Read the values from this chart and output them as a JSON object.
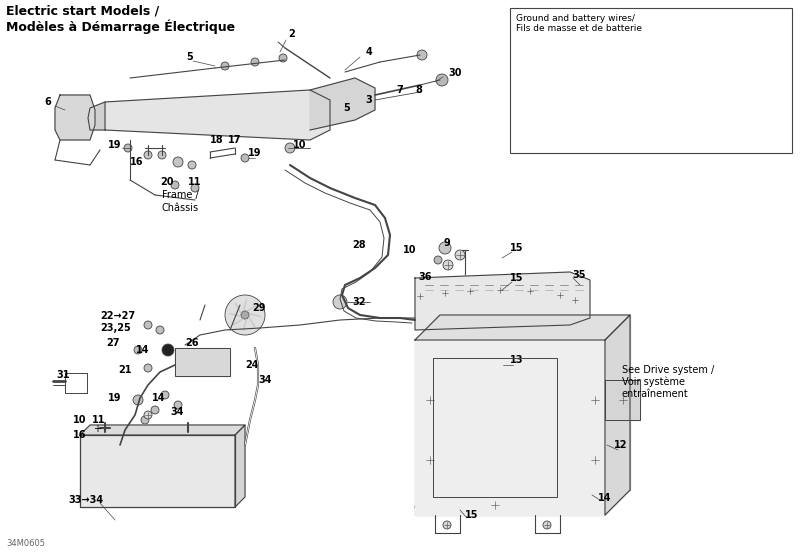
{
  "title": "Electric start Models /\nModèles à Démarrage Électrique",
  "inset_title": "Ground and battery wires/\nFils de masse et de batterie",
  "background_color": "#ffffff",
  "line_color": "#444444",
  "text_color": "#000000",
  "border_color": "#000000",
  "fig_width": 8.0,
  "fig_height": 5.52,
  "dpi": 100,
  "watermark": "34M0605",
  "note": "See Drive system /\nVoir système\nentraînement"
}
